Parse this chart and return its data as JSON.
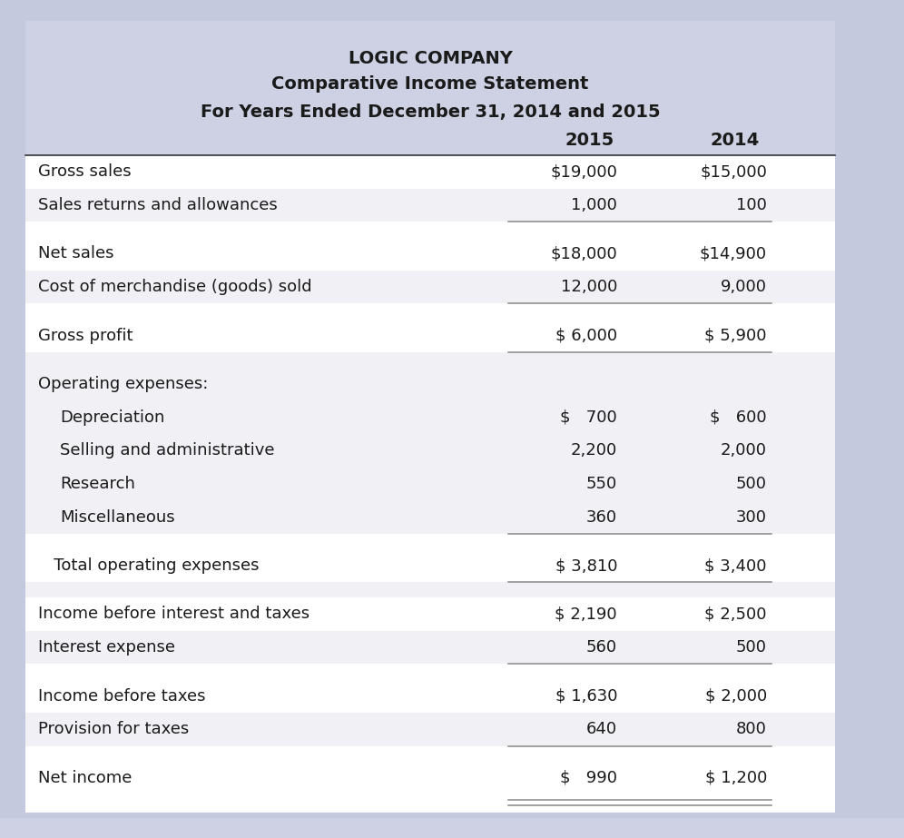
{
  "title_line1": "LOGIC COMPANY",
  "title_line2": "Comparative Income Statement",
  "title_line3": "For Years Ended December 31, 2014 and 2015",
  "header_bg": "#cdd1e3",
  "row_alt_bg": "#f0f0f5",
  "row_white_bg": "#ffffff",
  "outer_bg": "#c5c9dd",
  "col_headers": [
    "2015",
    "2014"
  ],
  "rows": [
    {
      "label": "Gross sales",
      "indent": 0,
      "val2015": "$19,000",
      "val2014": "$15,000",
      "alt": false,
      "sep_after": false,
      "double_sep": false,
      "spacer": false
    },
    {
      "label": "Sales returns and allowances",
      "indent": 0,
      "val2015": "1,000",
      "val2014": "100",
      "alt": true,
      "sep_after": true,
      "double_sep": false,
      "spacer": false
    },
    {
      "label": "",
      "indent": 0,
      "val2015": "",
      "val2014": "",
      "alt": false,
      "sep_after": false,
      "double_sep": false,
      "spacer": true
    },
    {
      "label": "Net sales",
      "indent": 0,
      "val2015": "$18,000",
      "val2014": "$14,900",
      "alt": false,
      "sep_after": false,
      "double_sep": false,
      "spacer": false
    },
    {
      "label": "Cost of merchandise (goods) sold",
      "indent": 0,
      "val2015": "12,000",
      "val2014": "9,000",
      "alt": true,
      "sep_after": true,
      "double_sep": false,
      "spacer": false
    },
    {
      "label": "",
      "indent": 0,
      "val2015": "",
      "val2014": "",
      "alt": false,
      "sep_after": false,
      "double_sep": false,
      "spacer": true
    },
    {
      "label": "Gross profit",
      "indent": 0,
      "val2015": "$ 6,000",
      "val2014": "$ 5,900",
      "alt": false,
      "sep_after": true,
      "double_sep": false,
      "spacer": false
    },
    {
      "label": "",
      "indent": 0,
      "val2015": "",
      "val2014": "",
      "alt": true,
      "sep_after": false,
      "double_sep": false,
      "spacer": true
    },
    {
      "label": "Operating expenses:",
      "indent": 0,
      "val2015": "",
      "val2014": "",
      "alt": true,
      "sep_after": false,
      "double_sep": false,
      "spacer": false
    },
    {
      "label": "Depreciation",
      "indent": 1,
      "val2015": "$   700",
      "val2014": "$   600",
      "alt": true,
      "sep_after": false,
      "double_sep": false,
      "spacer": false
    },
    {
      "label": "Selling and administrative",
      "indent": 1,
      "val2015": "2,200",
      "val2014": "2,000",
      "alt": true,
      "sep_after": false,
      "double_sep": false,
      "spacer": false
    },
    {
      "label": "Research",
      "indent": 1,
      "val2015": "550",
      "val2014": "500",
      "alt": true,
      "sep_after": false,
      "double_sep": false,
      "spacer": false
    },
    {
      "label": "Miscellaneous",
      "indent": 1,
      "val2015": "360",
      "val2014": "300",
      "alt": true,
      "sep_after": true,
      "double_sep": false,
      "spacer": false
    },
    {
      "label": "",
      "indent": 0,
      "val2015": "",
      "val2014": "",
      "alt": false,
      "sep_after": false,
      "double_sep": false,
      "spacer": true
    },
    {
      "label": "   Total operating expenses",
      "indent": 0,
      "val2015": "$ 3,810",
      "val2014": "$ 3,400",
      "alt": false,
      "sep_after": true,
      "double_sep": false,
      "spacer": false
    },
    {
      "label": "",
      "indent": 0,
      "val2015": "",
      "val2014": "",
      "alt": true,
      "sep_after": false,
      "double_sep": false,
      "spacer": true
    },
    {
      "label": "Income before interest and taxes",
      "indent": 0,
      "val2015": "$ 2,190",
      "val2014": "$ 2,500",
      "alt": false,
      "sep_after": false,
      "double_sep": false,
      "spacer": false
    },
    {
      "label": "Interest expense",
      "indent": 0,
      "val2015": "560",
      "val2014": "500",
      "alt": true,
      "sep_after": true,
      "double_sep": false,
      "spacer": false
    },
    {
      "label": "",
      "indent": 0,
      "val2015": "",
      "val2014": "",
      "alt": false,
      "sep_after": false,
      "double_sep": false,
      "spacer": true
    },
    {
      "label": "Income before taxes",
      "indent": 0,
      "val2015": "$ 1,630",
      "val2014": "$ 2,000",
      "alt": false,
      "sep_after": false,
      "double_sep": false,
      "spacer": false
    },
    {
      "label": "Provision for taxes",
      "indent": 0,
      "val2015": "640",
      "val2014": "800",
      "alt": true,
      "sep_after": true,
      "double_sep": false,
      "spacer": false
    },
    {
      "label": "",
      "indent": 0,
      "val2015": "",
      "val2014": "",
      "alt": false,
      "sep_after": false,
      "double_sep": false,
      "spacer": true
    },
    {
      "label": "Net income",
      "indent": 0,
      "val2015": "$   990",
      "val2014": "$ 1,200",
      "alt": false,
      "sep_after": false,
      "double_sep": true,
      "spacer": false
    }
  ],
  "font_size": 13.0,
  "title_font_size": 14.0,
  "sep_color": "#888888"
}
